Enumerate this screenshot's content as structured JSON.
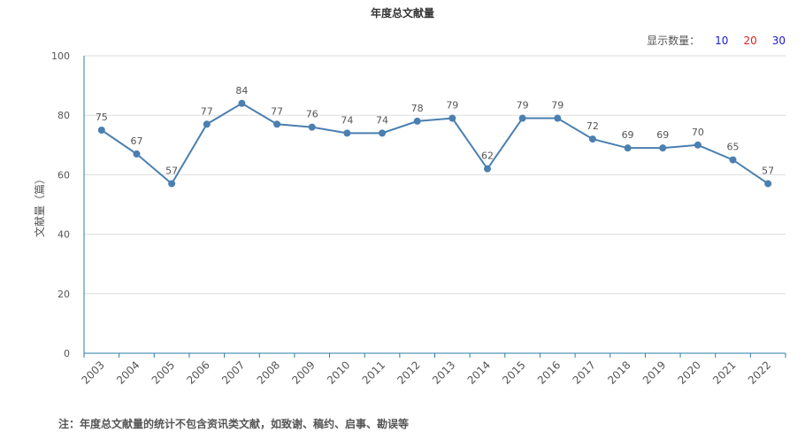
{
  "title": "年度总文献量",
  "display_count": {
    "label": "显示数量：",
    "options": [
      {
        "text": "10",
        "color": "#1a1acc"
      },
      {
        "text": "20",
        "color": "#e02020"
      },
      {
        "text": "30",
        "color": "#1a1acc"
      }
    ]
  },
  "footnote": "注：年度总文献量的统计不包含资讯类文献，如致谢、稿约、启事、勘误等",
  "colors": {
    "line": "#4a7fb0",
    "axis": "#2a7da8",
    "grid": "#dddddd"
  },
  "chart_data": {
    "type": "line",
    "title": "年度总文献量",
    "xlabel": "",
    "ylabel": "文献量（篇）",
    "ylim": [
      0,
      100
    ],
    "yticks": [
      0,
      20,
      40,
      60,
      80,
      100
    ],
    "grid": true,
    "categories": [
      "2003",
      "2004",
      "2005",
      "2006",
      "2007",
      "2008",
      "2009",
      "2010",
      "2011",
      "2012",
      "2013",
      "2014",
      "2015",
      "2016",
      "2017",
      "2018",
      "2019",
      "2020",
      "2021",
      "2022"
    ],
    "values": [
      75,
      67,
      57,
      77,
      84,
      77,
      76,
      74,
      74,
      78,
      79,
      62,
      79,
      79,
      72,
      69,
      69,
      70,
      65,
      57
    ]
  }
}
